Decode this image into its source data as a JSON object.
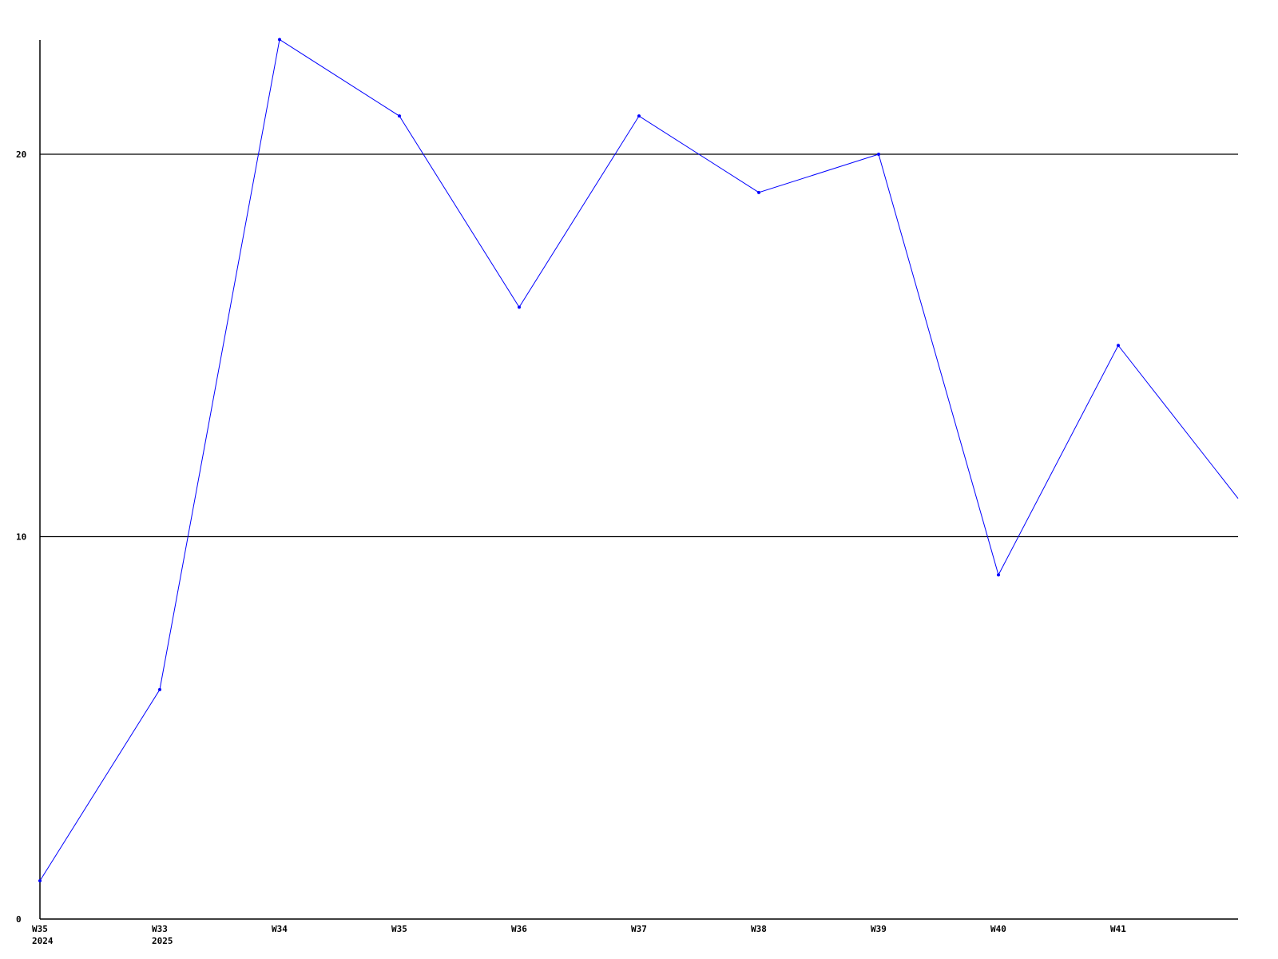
{
  "chart_data": {
    "type": "line",
    "title": "",
    "xlabel": "",
    "ylabel": "",
    "categories": [
      [
        "W35",
        "2024"
      ],
      [
        "W33",
        "2025"
      ],
      [
        "W34"
      ],
      [
        "W35"
      ],
      [
        "W36"
      ],
      [
        "W37"
      ],
      [
        "W38"
      ],
      [
        "W39"
      ],
      [
        "W40"
      ],
      [
        "W41"
      ],
      [
        ""
      ]
    ],
    "series": [
      {
        "values": [
          1,
          6,
          23,
          21,
          16,
          21,
          19,
          20,
          9,
          15,
          11
        ],
        "color": "#0000ff"
      }
    ],
    "ylim": [
      0,
      23
    ],
    "yticks": [
      0,
      10,
      20
    ],
    "grid": "horizontal lines at y ticks",
    "legend": "none",
    "axis_color": "#000000"
  }
}
